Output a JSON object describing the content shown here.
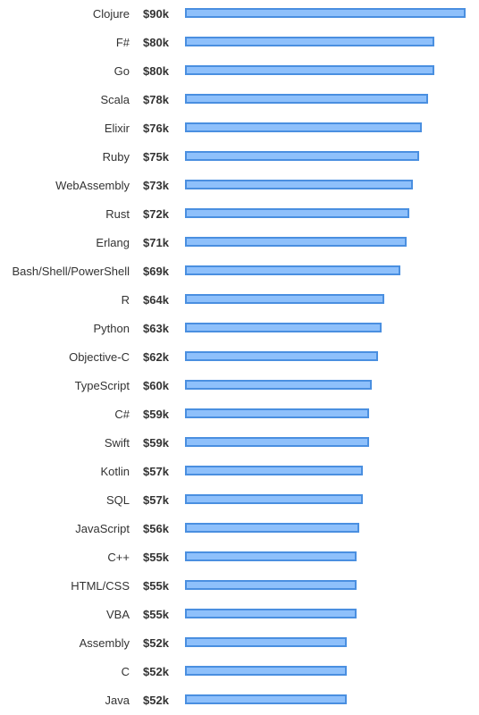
{
  "chart_data": {
    "type": "bar",
    "orientation": "horizontal",
    "title": "",
    "xlabel": "",
    "ylabel": "",
    "xlim": [
      0,
      90
    ],
    "bar_color": "#8ec0fb",
    "bar_border_color": "#4a8fe0",
    "text_color": "#333333",
    "categories": [
      "Clojure",
      "F#",
      "Go",
      "Scala",
      "Elixir",
      "Ruby",
      "WebAssembly",
      "Rust",
      "Erlang",
      "Bash/Shell/PowerShell",
      "R",
      "Python",
      "Objective-C",
      "TypeScript",
      "C#",
      "Swift",
      "Kotlin",
      "SQL",
      "JavaScript",
      "C++",
      "HTML/CSS",
      "VBA",
      "Assembly",
      "C",
      "Java"
    ],
    "values": [
      90,
      80,
      80,
      78,
      76,
      75,
      73,
      72,
      71,
      69,
      64,
      63,
      62,
      60,
      59,
      59,
      57,
      57,
      56,
      55,
      55,
      55,
      52,
      52,
      52
    ],
    "value_labels": [
      "$90k",
      "$80k",
      "$80k",
      "$78k",
      "$76k",
      "$75k",
      "$73k",
      "$72k",
      "$71k",
      "$69k",
      "$64k",
      "$63k",
      "$62k",
      "$60k",
      "$59k",
      "$59k",
      "$57k",
      "$57k",
      "$56k",
      "$55k",
      "$55k",
      "$55k",
      "$52k",
      "$52k",
      "$52k"
    ]
  }
}
